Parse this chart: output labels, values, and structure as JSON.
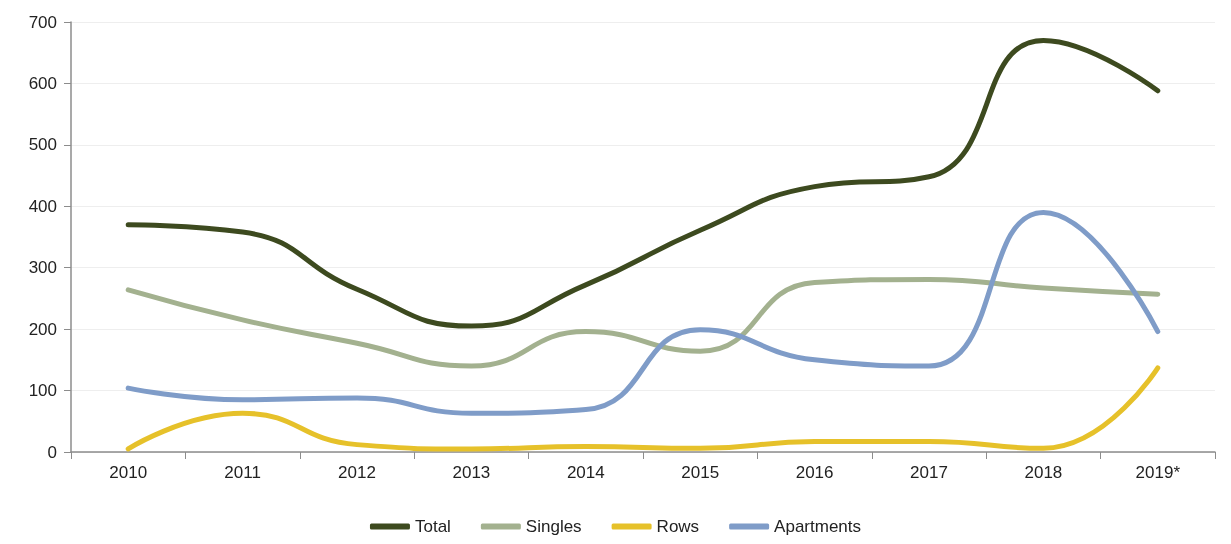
{
  "chart_data": {
    "type": "line",
    "categories": [
      "2010",
      "2011",
      "2012",
      "2013",
      "2014",
      "2015",
      "2016",
      "2017",
      "2018",
      "2019*"
    ],
    "series": [
      {
        "name": "Total",
        "color": "#3d4a1f",
        "values": [
          370,
          358,
          265,
          205,
          272,
          361,
          432,
          448,
          670,
          588
        ]
      },
      {
        "name": "Singles",
        "color": "#a3b18f",
        "values": [
          264,
          215,
          177,
          140,
          196,
          164,
          276,
          281,
          267,
          257
        ]
      },
      {
        "name": "Rows",
        "color": "#e6c12a",
        "values": [
          5,
          63,
          12,
          5,
          9,
          6,
          17,
          17,
          6,
          137
        ]
      },
      {
        "name": "Apartments",
        "color": "#7f9cc8",
        "values": [
          104,
          85,
          88,
          63,
          69,
          199,
          150,
          140,
          390,
          196
        ]
      }
    ],
    "ylim": [
      0,
      700
    ],
    "yticks": [
      0,
      100,
      200,
      300,
      400,
      500,
      600,
      700
    ],
    "grid": "y",
    "legend": "bottom",
    "marker": "none",
    "line_style": "solid"
  }
}
